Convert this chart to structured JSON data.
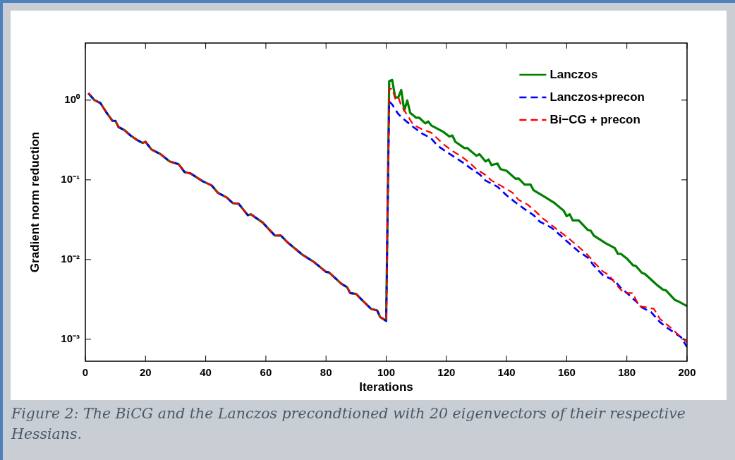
{
  "chart_data": {
    "type": "line",
    "xlabel": "Iterations",
    "ylabel": "Gradient norm reduction",
    "log": "y",
    "legend": "top right",
    "xlim": [
      0,
      200
    ],
    "xticks": [
      0,
      20,
      40,
      60,
      80,
      100,
      120,
      140,
      160,
      180,
      200
    ],
    "ylim": [
      0.00053,
      5.2
    ],
    "yticks": [
      {
        "value": 0.001,
        "label": "10⁻³"
      },
      {
        "value": 0.01,
        "label": "10⁻²"
      },
      {
        "value": 0.1,
        "label": "10⁻¹"
      },
      {
        "value": 1,
        "label": "10⁰"
      }
    ],
    "annotations": [
      "Figure 2: The BiCG and the Lanczos precondtioned with 20 eigenvectors of their respective Hessians."
    ],
    "series": [
      {
        "name": "Lanczos",
        "color": "#008000",
        "line_style": "solid",
        "x": [
          1,
          3,
          5,
          7,
          9,
          10,
          11,
          13,
          15,
          17,
          19,
          20,
          22,
          25,
          28,
          31,
          33,
          35,
          39,
          42,
          44,
          47,
          49,
          51,
          54,
          55,
          59,
          61,
          63,
          65,
          67,
          72,
          76,
          80,
          81,
          85,
          87,
          88,
          90,
          92,
          95,
          97,
          98,
          99,
          100,
          101,
          102,
          103,
          104,
          105,
          106,
          107,
          108,
          110,
          111,
          113,
          114,
          115,
          119,
          121,
          122,
          123,
          126,
          127,
          130,
          131,
          133,
          134,
          135,
          137,
          138,
          140,
          143,
          144,
          146,
          148,
          149,
          153,
          156,
          159,
          160,
          161,
          162,
          164,
          167,
          168,
          169,
          173,
          176,
          177,
          178,
          180,
          182,
          183,
          185,
          186,
          189,
          190,
          192,
          193,
          196,
          197,
          200
        ],
        "values": [
          1.22,
          1.0,
          0.92,
          0.7,
          0.55,
          0.55,
          0.46,
          0.42,
          0.36,
          0.32,
          0.29,
          0.3,
          0.24,
          0.21,
          0.17,
          0.157,
          0.125,
          0.12,
          0.096,
          0.085,
          0.069,
          0.06,
          0.051,
          0.05,
          0.036,
          0.037,
          0.029,
          0.024,
          0.02,
          0.02,
          0.0167,
          0.0116,
          0.0093,
          0.007,
          0.0069,
          0.005,
          0.0045,
          0.0038,
          0.0037,
          0.0031,
          0.0024,
          0.0023,
          0.0019,
          0.0018,
          0.0017,
          1.73,
          1.79,
          1.08,
          1.08,
          1.34,
          0.74,
          0.99,
          0.69,
          0.6,
          0.6,
          0.51,
          0.54,
          0.48,
          0.4,
          0.35,
          0.36,
          0.3,
          0.25,
          0.25,
          0.2,
          0.21,
          0.17,
          0.18,
          0.153,
          0.16,
          0.136,
          0.13,
          0.103,
          0.104,
          0.087,
          0.087,
          0.074,
          0.06,
          0.051,
          0.041,
          0.035,
          0.037,
          0.031,
          0.031,
          0.0235,
          0.023,
          0.02,
          0.016,
          0.0139,
          0.0118,
          0.0118,
          0.0103,
          0.0085,
          0.0083,
          0.0068,
          0.0066,
          0.0052,
          0.0048,
          0.0042,
          0.0041,
          0.0031,
          0.003,
          0.0026
        ]
      },
      {
        "name": "Lanczos+precon",
        "color": "#0000ff",
        "line_style": "dashed",
        "x": [
          1,
          3,
          5,
          7,
          9,
          10,
          11,
          13,
          15,
          17,
          19,
          20,
          22,
          25,
          28,
          31,
          33,
          35,
          39,
          42,
          44,
          47,
          49,
          51,
          54,
          55,
          59,
          61,
          63,
          65,
          67,
          72,
          76,
          80,
          81,
          85,
          87,
          88,
          90,
          92,
          95,
          97,
          98,
          99,
          100,
          101,
          102,
          104,
          106,
          109,
          112,
          115,
          117,
          120,
          123,
          126,
          128,
          131,
          133,
          137,
          140,
          143,
          146,
          149,
          151,
          155,
          158,
          160,
          164,
          167,
          169,
          172,
          176,
          178,
          180,
          183,
          185,
          188,
          191,
          194,
          198,
          200
        ],
        "values": [
          1.22,
          1.0,
          0.92,
          0.7,
          0.55,
          0.55,
          0.46,
          0.42,
          0.36,
          0.32,
          0.29,
          0.3,
          0.24,
          0.21,
          0.17,
          0.157,
          0.125,
          0.12,
          0.096,
          0.085,
          0.069,
          0.06,
          0.051,
          0.05,
          0.036,
          0.037,
          0.029,
          0.024,
          0.02,
          0.02,
          0.0167,
          0.0116,
          0.0093,
          0.007,
          0.0069,
          0.005,
          0.0045,
          0.0038,
          0.0037,
          0.0031,
          0.0024,
          0.0023,
          0.0019,
          0.0018,
          0.0017,
          0.96,
          0.88,
          0.67,
          0.57,
          0.46,
          0.38,
          0.33,
          0.27,
          0.225,
          0.19,
          0.16,
          0.14,
          0.118,
          0.098,
          0.082,
          0.064,
          0.052,
          0.043,
          0.036,
          0.03,
          0.025,
          0.02,
          0.017,
          0.0126,
          0.0106,
          0.0084,
          0.0064,
          0.0054,
          0.0044,
          0.0038,
          0.003,
          0.0025,
          0.0022,
          0.00164,
          0.00134,
          0.00106,
          0.0008
        ]
      },
      {
        "name": "Bi−CG + precon",
        "color": "#ff0000",
        "line_style": "dashed",
        "x": [
          1,
          3,
          5,
          7,
          9,
          10,
          11,
          13,
          15,
          17,
          19,
          20,
          22,
          25,
          28,
          31,
          33,
          35,
          39,
          42,
          44,
          47,
          49,
          51,
          54,
          55,
          59,
          61,
          63,
          65,
          67,
          72,
          76,
          80,
          81,
          85,
          87,
          88,
          90,
          92,
          95,
          97,
          98,
          99,
          100,
          101,
          102,
          103,
          104,
          105,
          107,
          109,
          112,
          115,
          117,
          119,
          122,
          125,
          128,
          130,
          133,
          135,
          138,
          142,
          144,
          147,
          150,
          152,
          155,
          158,
          161,
          164,
          167,
          169,
          172,
          174,
          177,
          179,
          182,
          184,
          187,
          189,
          191,
          194,
          197,
          200
        ],
        "values": [
          1.22,
          1.0,
          0.92,
          0.7,
          0.55,
          0.55,
          0.46,
          0.42,
          0.36,
          0.32,
          0.29,
          0.3,
          0.24,
          0.21,
          0.17,
          0.157,
          0.125,
          0.12,
          0.096,
          0.085,
          0.069,
          0.06,
          0.051,
          0.05,
          0.036,
          0.037,
          0.029,
          0.024,
          0.02,
          0.02,
          0.0167,
          0.0116,
          0.0093,
          0.007,
          0.0069,
          0.005,
          0.0045,
          0.0038,
          0.0037,
          0.0031,
          0.0024,
          0.0023,
          0.0019,
          0.0018,
          0.0017,
          1.37,
          1.4,
          1.04,
          1.1,
          0.85,
          0.65,
          0.49,
          0.43,
          0.39,
          0.33,
          0.28,
          0.23,
          0.197,
          0.16,
          0.136,
          0.115,
          0.098,
          0.085,
          0.069,
          0.056,
          0.049,
          0.039,
          0.033,
          0.027,
          0.022,
          0.018,
          0.0144,
          0.0114,
          0.0093,
          0.0071,
          0.0064,
          0.0046,
          0.0038,
          0.0038,
          0.0026,
          0.0025,
          0.0024,
          0.0018,
          0.00146,
          0.00115,
          0.00092
        ]
      }
    ]
  }
}
